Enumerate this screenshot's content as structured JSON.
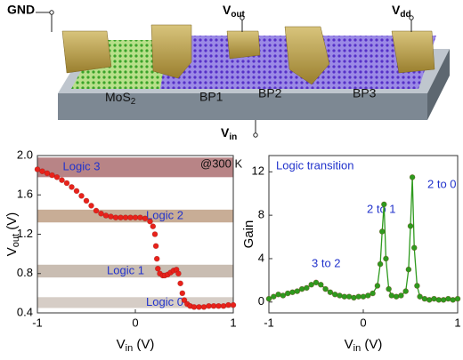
{
  "diagram": {
    "labels": {
      "gnd": {
        "text": "GND"
      },
      "vout": {
        "text": "V",
        "sub": "out"
      },
      "vdd": {
        "text": "V",
        "sub": "dd"
      },
      "mos2": {
        "text": "MoS",
        "sub": "2"
      },
      "bp1": {
        "text": "BP1"
      },
      "bp2": {
        "text": "BP2"
      },
      "bp3": {
        "text": "BP3"
      },
      "vin": {
        "text": "V",
        "sub": "in"
      }
    }
  },
  "chart_data": [
    {
      "type": "scatter",
      "color": "#e8221b",
      "x_label": {
        "text": "V",
        "sub": "in",
        "unit": " (V)"
      },
      "y_label": {
        "text": "V",
        "sub": "out",
        "unit": " (V)"
      },
      "annotations": [
        "@300 K"
      ],
      "bands": [
        {
          "label": "Logic 3",
          "range": [
            1.78,
            1.98
          ],
          "color": "#b88486"
        },
        {
          "label": "Logic 2",
          "range": [
            1.32,
            1.45
          ],
          "color": "#c8ad96"
        },
        {
          "label": "Logic 1",
          "range": [
            0.76,
            0.89
          ],
          "color": "#c9bdb2"
        },
        {
          "label": "Logic 0",
          "range": [
            0.45,
            0.56
          ],
          "color": "#d6cdc6"
        }
      ],
      "x": [
        -1,
        -0.95,
        -0.9,
        -0.85,
        -0.8,
        -0.75,
        -0.7,
        -0.65,
        -0.6,
        -0.55,
        -0.5,
        -0.45,
        -0.4,
        -0.35,
        -0.3,
        -0.25,
        -0.2,
        -0.15,
        -0.1,
        -0.05,
        0,
        0.05,
        0.1,
        0.15,
        0.18,
        0.2,
        0.21,
        0.22,
        0.23,
        0.25,
        0.28,
        0.3,
        0.33,
        0.36,
        0.39,
        0.42,
        0.44,
        0.46,
        0.48,
        0.5,
        0.53,
        0.56,
        0.6,
        0.65,
        0.7,
        0.75,
        0.8,
        0.85,
        0.9,
        0.95,
        1
      ],
      "values": [
        1.86,
        1.84,
        1.82,
        1.8,
        1.78,
        1.75,
        1.72,
        1.68,
        1.64,
        1.59,
        1.54,
        1.49,
        1.44,
        1.41,
        1.39,
        1.38,
        1.37,
        1.37,
        1.37,
        1.37,
        1.37,
        1.37,
        1.36,
        1.33,
        1.28,
        1.2,
        1.08,
        0.95,
        0.85,
        0.8,
        0.78,
        0.78,
        0.79,
        0.81,
        0.83,
        0.84,
        0.8,
        0.7,
        0.6,
        0.53,
        0.49,
        0.47,
        0.46,
        0.46,
        0.46,
        0.47,
        0.47,
        0.47,
        0.47,
        0.48,
        0.48
      ],
      "xlim": [
        -1,
        1
      ],
      "xticks": [
        -1,
        0,
        1
      ],
      "ylim": [
        0.4,
        2.0
      ],
      "yticks": [
        0.4,
        0.8,
        1.2,
        1.6,
        {
          "value": 2,
          "label": "2.0"
        }
      ]
    },
    {
      "type": "line",
      "color": "#2e9a1e",
      "x_label": {
        "text": "V",
        "sub": "in",
        "unit": " (V)"
      },
      "y_label": {
        "text": "Gain"
      },
      "annotations": [
        "Logic transition",
        "3 to 2",
        "2 to 1",
        "2 to 0"
      ],
      "x": [
        -1,
        -0.95,
        -0.9,
        -0.85,
        -0.8,
        -0.75,
        -0.7,
        -0.65,
        -0.6,
        -0.55,
        -0.5,
        -0.45,
        -0.4,
        -0.35,
        -0.3,
        -0.25,
        -0.2,
        -0.15,
        -0.1,
        -0.05,
        0,
        0.05,
        0.1,
        0.15,
        0.18,
        0.2,
        0.22,
        0.24,
        0.27,
        0.3,
        0.35,
        0.4,
        0.45,
        0.48,
        0.5,
        0.52,
        0.54,
        0.57,
        0.6,
        0.65,
        0.7,
        0.75,
        0.8,
        0.85,
        0.9,
        0.95,
        1
      ],
      "values": [
        0.3,
        0.5,
        0.7,
        0.6,
        0.8,
        0.9,
        1.0,
        1.2,
        1.3,
        1.6,
        1.8,
        1.6,
        1.2,
        0.9,
        0.7,
        0.6,
        0.5,
        0.5,
        0.4,
        0.5,
        0.5,
        0.6,
        0.8,
        1.5,
        3.5,
        6.5,
        9.0,
        4.0,
        1.2,
        0.6,
        0.5,
        0.6,
        1.0,
        3.0,
        7.0,
        11.5,
        5.0,
        1.5,
        0.5,
        0.3,
        0.2,
        0.3,
        0.2,
        0.2,
        0.3,
        0.2,
        0.3
      ],
      "xlim": [
        -1,
        1
      ],
      "xticks": [
        -1,
        0,
        1
      ],
      "ylim": [
        -1,
        13.5
      ],
      "yticks": [
        0,
        4,
        8,
        12
      ]
    }
  ]
}
